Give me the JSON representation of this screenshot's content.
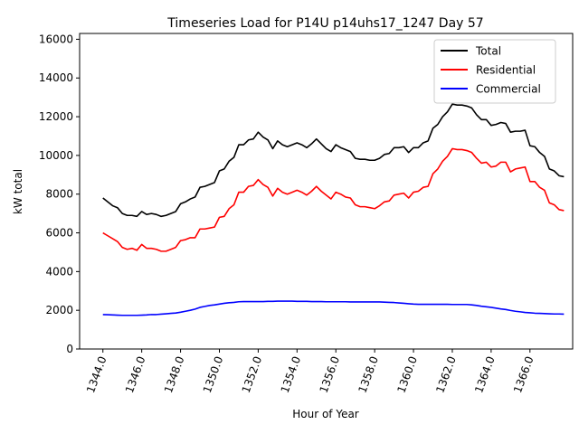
{
  "chart_data": {
    "type": "line",
    "title": "Timeseries Load for P14U p14uhs17_1247  Day 57",
    "xlabel": "Hour of Year",
    "ylabel": "kW total",
    "xlim": [
      1342.8,
      1368.2
    ],
    "ylim": [
      0,
      16300
    ],
    "xticks": [
      1344,
      1346,
      1348,
      1350,
      1352,
      1354,
      1356,
      1358,
      1360,
      1362,
      1364,
      1366
    ],
    "xtick_labels": [
      "1344.0",
      "1346.0",
      "1348.0",
      "1350.0",
      "1352.0",
      "1354.0",
      "1356.0",
      "1358.0",
      "1360.0",
      "1362.0",
      "1364.0",
      "1366.0"
    ],
    "yticks": [
      0,
      2000,
      4000,
      6000,
      8000,
      10000,
      12000,
      14000,
      16000
    ],
    "ytick_labels": [
      "0",
      "2000",
      "4000",
      "6000",
      "8000",
      "10000",
      "12000",
      "14000",
      "16000"
    ],
    "grid": false,
    "legend_position": "top-right",
    "x": [
      1344.0,
      1344.25,
      1344.5,
      1344.75,
      1345.0,
      1345.25,
      1345.5,
      1345.75,
      1346.0,
      1346.25,
      1346.5,
      1346.75,
      1347.0,
      1347.25,
      1347.5,
      1347.75,
      1348.0,
      1348.25,
      1348.5,
      1348.75,
      1349.0,
      1349.25,
      1349.5,
      1349.75,
      1350.0,
      1350.25,
      1350.5,
      1350.75,
      1351.0,
      1351.25,
      1351.5,
      1351.75,
      1352.0,
      1352.25,
      1352.5,
      1352.75,
      1353.0,
      1353.25,
      1353.5,
      1353.75,
      1354.0,
      1354.25,
      1354.5,
      1354.75,
      1355.0,
      1355.25,
      1355.5,
      1355.75,
      1356.0,
      1356.25,
      1356.5,
      1356.75,
      1357.0,
      1357.25,
      1357.5,
      1357.75,
      1358.0,
      1358.25,
      1358.5,
      1358.75,
      1359.0,
      1359.25,
      1359.5,
      1359.75,
      1360.0,
      1360.25,
      1360.5,
      1360.75,
      1361.0,
      1361.25,
      1361.5,
      1361.75,
      1362.0,
      1362.25,
      1362.5,
      1362.75,
      1363.0,
      1363.25,
      1363.5,
      1363.75,
      1364.0,
      1364.25,
      1364.5,
      1364.75,
      1365.0,
      1365.25,
      1365.5,
      1365.75,
      1366.0,
      1366.25,
      1366.5,
      1366.75,
      1367.0,
      1367.25,
      1367.5,
      1367.75
    ],
    "series": [
      {
        "name": "Total",
        "color": "#000000",
        "values": [
          7800,
          7600,
          7400,
          7300,
          7000,
          6900,
          6900,
          6850,
          7100,
          6950,
          7000,
          6950,
          6850,
          6900,
          7000,
          7100,
          7500,
          7600,
          7750,
          7850,
          8350,
          8400,
          8500,
          8600,
          9200,
          9300,
          9700,
          9900,
          10550,
          10550,
          10800,
          10850,
          11200,
          10950,
          10800,
          10350,
          10750,
          10550,
          10450,
          10550,
          10650,
          10550,
          10400,
          10600,
          10850,
          10600,
          10350,
          10200,
          10550,
          10400,
          10300,
          10200,
          9850,
          9800,
          9800,
          9750,
          9750,
          9850,
          10050,
          10100,
          10400,
          10400,
          10450,
          10150,
          10400,
          10400,
          10650,
          10750,
          11400,
          11600,
          12000,
          12250,
          12650,
          12600,
          12600,
          12550,
          12450,
          12100,
          11850,
          11850,
          11550,
          11600,
          11700,
          11650,
          11200,
          11250,
          11250,
          11300,
          10500,
          10450,
          10150,
          9950,
          9300,
          9200,
          8950,
          8900
        ]
      },
      {
        "name": "Residential",
        "color": "#ff0000",
        "values": [
          6000,
          5850,
          5700,
          5550,
          5250,
          5150,
          5200,
          5100,
          5400,
          5200,
          5200,
          5150,
          5050,
          5050,
          5150,
          5250,
          5600,
          5650,
          5750,
          5750,
          6200,
          6200,
          6250,
          6300,
          6800,
          6850,
          7250,
          7450,
          8100,
          8100,
          8400,
          8450,
          8750,
          8500,
          8350,
          7900,
          8300,
          8100,
          8000,
          8100,
          8200,
          8100,
          7950,
          8150,
          8400,
          8150,
          7950,
          7750,
          8100,
          8000,
          7850,
          7800,
          7450,
          7350,
          7350,
          7300,
          7250,
          7400,
          7600,
          7650,
          7950,
          8000,
          8050,
          7800,
          8100,
          8150,
          8350,
          8400,
          9050,
          9300,
          9700,
          9950,
          10350,
          10300,
          10300,
          10250,
          10150,
          9850,
          9600,
          9650,
          9400,
          9450,
          9650,
          9650,
          9150,
          9300,
          9350,
          9400,
          8650,
          8650,
          8350,
          8200,
          7550,
          7450,
          7200,
          7150
        ]
      },
      {
        "name": "Commercial",
        "color": "#0000ff",
        "values": [
          1780,
          1770,
          1760,
          1750,
          1740,
          1740,
          1740,
          1740,
          1750,
          1760,
          1780,
          1780,
          1800,
          1820,
          1840,
          1860,
          1900,
          1950,
          2000,
          2060,
          2150,
          2200,
          2250,
          2280,
          2320,
          2360,
          2390,
          2410,
          2440,
          2450,
          2450,
          2450,
          2450,
          2450,
          2460,
          2460,
          2470,
          2470,
          2470,
          2470,
          2460,
          2460,
          2460,
          2450,
          2450,
          2450,
          2440,
          2440,
          2440,
          2440,
          2440,
          2430,
          2430,
          2430,
          2430,
          2430,
          2430,
          2430,
          2420,
          2410,
          2400,
          2380,
          2360,
          2340,
          2320,
          2310,
          2310,
          2310,
          2310,
          2310,
          2310,
          2310,
          2300,
          2300,
          2300,
          2300,
          2280,
          2250,
          2210,
          2180,
          2150,
          2110,
          2070,
          2040,
          1990,
          1950,
          1920,
          1890,
          1870,
          1850,
          1840,
          1830,
          1820,
          1810,
          1810,
          1800
        ]
      }
    ]
  }
}
